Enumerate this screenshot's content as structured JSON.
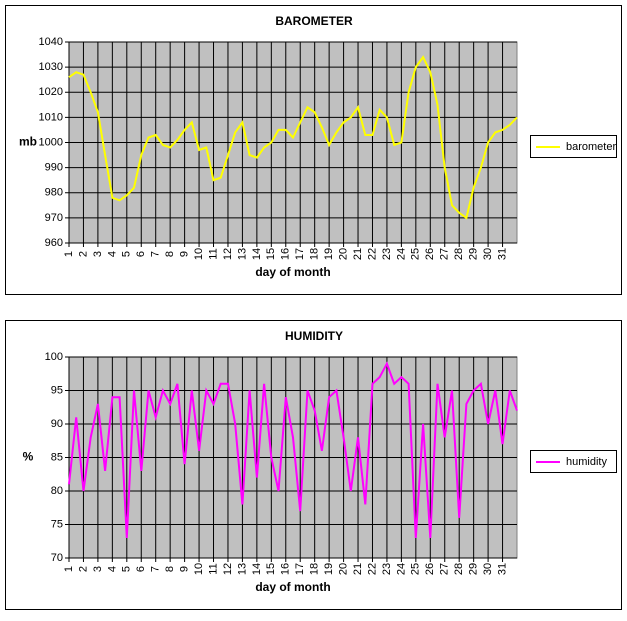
{
  "charts": [
    {
      "chart_data": {
        "type": "line",
        "title": "BAROMETER",
        "xlabel": "day of month",
        "ylabel": "mb",
        "x": [
          1,
          1.5,
          2,
          2.5,
          3,
          3.5,
          4,
          4.5,
          5,
          5.5,
          6,
          6.5,
          7,
          7.5,
          8,
          8.5,
          9,
          9.5,
          10,
          10.5,
          11,
          11.5,
          12,
          12.5,
          13,
          13.5,
          14,
          14.5,
          15,
          15.5,
          16,
          16.5,
          17,
          17.5,
          18,
          18.5,
          19,
          19.5,
          20,
          20.5,
          21,
          21.5,
          22,
          22.5,
          23,
          23.5,
          24,
          24.5,
          25,
          25.5,
          26,
          26.5,
          27,
          27.5,
          28,
          28.5,
          29,
          29.5,
          30,
          30.5,
          31,
          31.5,
          32
        ],
        "series": [
          {
            "name": "barometer",
            "color": "#ffff00",
            "values": [
              1026,
              1028,
              1027,
              1020,
              1012,
              995,
              978,
              977,
              979,
              982,
              995,
              1002,
              1003,
              999,
              998,
              1001,
              1005,
              1008,
              997,
              998,
              985,
              986,
              995,
              1004,
              1008,
              995,
              994,
              998,
              1000,
              1005,
              1005,
              1002,
              1008,
              1014,
              1012,
              1006,
              999,
              1004,
              1008,
              1010,
              1014,
              1003,
              1003,
              1013,
              1010,
              999,
              1000,
              1020,
              1030,
              1034,
              1028,
              1015,
              990,
              975,
              972,
              970,
              982,
              990,
              1000,
              1004,
              1005,
              1007,
              1010
            ]
          }
        ],
        "xlim": [
          1,
          32
        ],
        "xticks": [
          1,
          2,
          3,
          4,
          5,
          6,
          7,
          8,
          9,
          10,
          11,
          12,
          13,
          14,
          15,
          16,
          17,
          18,
          19,
          20,
          21,
          22,
          23,
          24,
          25,
          26,
          27,
          28,
          29,
          30,
          31
        ],
        "ylim": [
          960,
          1040
        ],
        "yticks": [
          960,
          970,
          980,
          990,
          1000,
          1010,
          1020,
          1030,
          1040
        ],
        "grid": true,
        "legend": "right"
      }
    },
    {
      "chart_data": {
        "type": "line",
        "title": "HUMIDITY",
        "xlabel": "day of month",
        "ylabel": "%",
        "x": [
          1,
          1.5,
          2,
          2.5,
          3,
          3.5,
          4,
          4.5,
          5,
          5.5,
          6,
          6.5,
          7,
          7.5,
          8,
          8.5,
          9,
          9.5,
          10,
          10.5,
          11,
          11.5,
          12,
          12.5,
          13,
          13.5,
          14,
          14.5,
          15,
          15.5,
          16,
          16.5,
          17,
          17.5,
          18,
          18.5,
          19,
          19.5,
          20,
          20.5,
          21,
          21.5,
          22,
          22.5,
          23,
          23.5,
          24,
          24.5,
          25,
          25.5,
          26,
          26.5,
          27,
          27.5,
          28,
          28.5,
          29,
          29.5,
          30,
          30.5,
          31,
          31.5,
          32
        ],
        "series": [
          {
            "name": "humidity",
            "color": "#ff00ff",
            "values": [
              81,
              91,
              80,
              88,
              93,
              83,
              94,
              94,
              73,
              95,
              83,
              95,
              91,
              95,
              93,
              96,
              84,
              95,
              86,
              95,
              93,
              96,
              96,
              90,
              78,
              95,
              82,
              96,
              85,
              80,
              94,
              88,
              77,
              95,
              92,
              86,
              94,
              95,
              88,
              80,
              88,
              78,
              96,
              97,
              99,
              96,
              97,
              96,
              73,
              90,
              73,
              96,
              88,
              95,
              76,
              93,
              95,
              96,
              90,
              95,
              87,
              95,
              92
            ]
          }
        ],
        "xlim": [
          1,
          32
        ],
        "xticks": [
          1,
          2,
          3,
          4,
          5,
          6,
          7,
          8,
          9,
          10,
          11,
          12,
          13,
          14,
          15,
          16,
          17,
          18,
          19,
          20,
          21,
          22,
          23,
          24,
          25,
          26,
          27,
          28,
          29,
          30,
          31
        ],
        "ylim": [
          70,
          100
        ],
        "yticks": [
          70,
          75,
          80,
          85,
          90,
          95,
          100
        ],
        "grid": true,
        "legend": "right"
      }
    }
  ]
}
